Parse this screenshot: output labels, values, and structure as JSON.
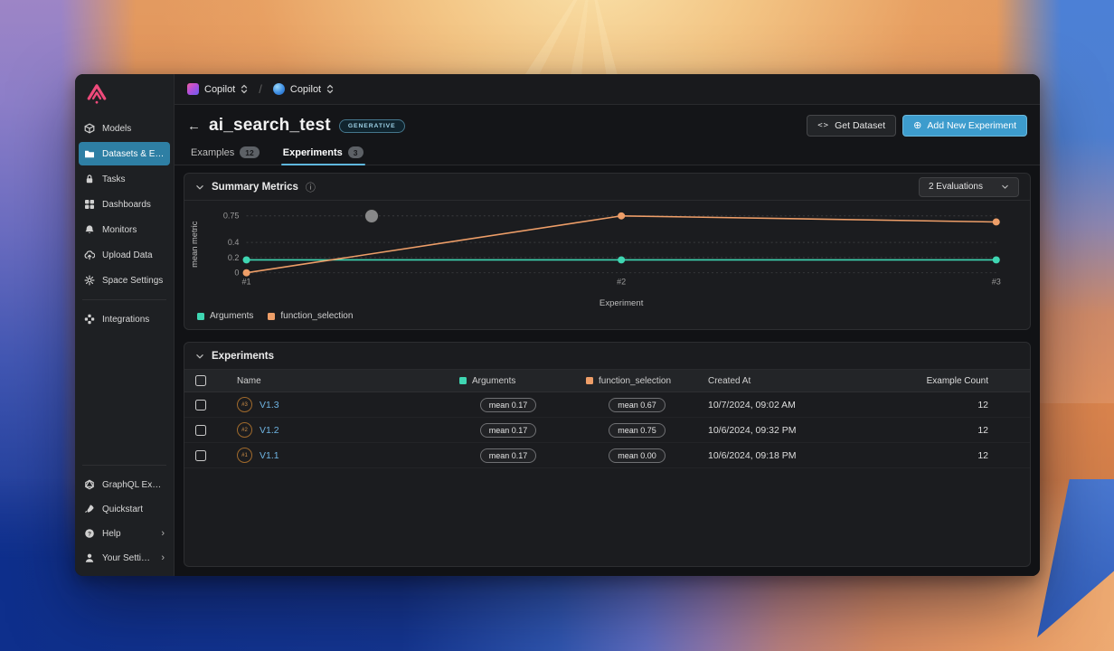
{
  "colors": {
    "accent_blue": "#3d9ccd",
    "sidebar_active": "#2e7fa4",
    "link": "#6fb4e2",
    "series_arguments": "#3fd6b2",
    "series_function_selection": "#ee9e68"
  },
  "sidebar": {
    "items": [
      {
        "icon": "cube-icon",
        "label": "Models"
      },
      {
        "icon": "folder-icon",
        "label": "Datasets & Expe..."
      },
      {
        "icon": "lock-icon",
        "label": "Tasks"
      },
      {
        "icon": "grid-icon",
        "label": "Dashboards"
      },
      {
        "icon": "bell-icon",
        "label": "Monitors"
      },
      {
        "icon": "cloud-upload-icon",
        "label": "Upload Data"
      },
      {
        "icon": "gear-icon",
        "label": "Space Settings"
      },
      {
        "icon": "integrations-icon",
        "label": "Integrations"
      }
    ],
    "footer_items": [
      {
        "icon": "graphql-icon",
        "label": "GraphQL Explore..."
      },
      {
        "icon": "rocket-icon",
        "label": "Quickstart"
      },
      {
        "icon": "help-icon",
        "label": "Help",
        "chevron": "›"
      },
      {
        "icon": "person-icon",
        "label": "Your Settings",
        "chevron": "›"
      }
    ]
  },
  "topbar": {
    "breadcrumb": [
      {
        "icon": "dataset-gradient-icon",
        "label": "Copilot"
      },
      {
        "icon": "model-sphere-icon",
        "label": "Copilot"
      }
    ],
    "separator": "/"
  },
  "header": {
    "back": "←",
    "title": "ai_search_test",
    "type_badge": "GENERATIVE",
    "get_dataset_label": "Get Dataset",
    "get_dataset_icon": "<>",
    "add_experiment_label": "Add New Experiment",
    "add_experiment_icon": "⊕"
  },
  "tabs": [
    {
      "label": "Examples",
      "count": "12"
    },
    {
      "label": "Experiments",
      "count": "3"
    }
  ],
  "summary_panel": {
    "title": "Summary Metrics",
    "evaluations_selector": "2 Evaluations"
  },
  "chart_data": {
    "type": "line",
    "title": "Summary Metrics",
    "x": [
      "#1",
      "#2",
      "#3"
    ],
    "series": [
      {
        "name": "Arguments",
        "color": "#3fd6b2",
        "values": [
          0.17,
          0.17,
          0.17
        ]
      },
      {
        "name": "function_selection",
        "color": "#ee9e68",
        "values": [
          0.0,
          0.75,
          0.67
        ]
      }
    ],
    "xlabel": "Experiment",
    "ylabel": "mean metric",
    "yticks": [
      0,
      0.2,
      0.4,
      0.75
    ],
    "ylim": [
      0,
      0.75
    ],
    "grid": true,
    "legend_position": "bottom-left"
  },
  "experiments_panel": {
    "title": "Experiments",
    "columns": {
      "name": "Name",
      "arguments": "Arguments",
      "function_selection": "function_selection",
      "created_at": "Created At",
      "example_count": "Example Count"
    },
    "rows": [
      {
        "number": "#3",
        "name": "V1.3",
        "arguments": "mean 0.17",
        "function_selection": "mean 0.67",
        "created_at": "10/7/2024, 09:02 AM",
        "example_count": "12"
      },
      {
        "number": "#2",
        "name": "V1.2",
        "arguments": "mean 0.17",
        "function_selection": "mean 0.75",
        "created_at": "10/6/2024, 09:32 PM",
        "example_count": "12"
      },
      {
        "number": "#1",
        "name": "V1.1",
        "arguments": "mean 0.17",
        "function_selection": "mean 0.00",
        "created_at": "10/6/2024, 09:18 PM",
        "example_count": "12"
      }
    ]
  }
}
